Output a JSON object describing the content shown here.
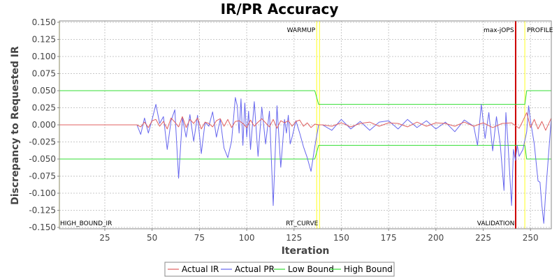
{
  "chart_data": {
    "type": "line",
    "title": "IR/PR Accuracy",
    "xlabel": "Iteration",
    "ylabel": "Discrepancy to Requested IR",
    "xlim": [
      1,
      261
    ],
    "ylim": [
      -0.152,
      0.152
    ],
    "x_ticks": [
      25,
      50,
      75,
      100,
      125,
      150,
      175,
      200,
      225,
      250
    ],
    "y_ticks": [
      0.15,
      0.125,
      0.1,
      0.075,
      0.05,
      0.025,
      0.0,
      -0.025,
      -0.05,
      -0.075,
      -0.1,
      -0.125,
      -0.15
    ],
    "grid": true,
    "legend_position": "bottom",
    "colors": {
      "actual_ir": "#e06060",
      "actual_pr": "#6666ee",
      "low_bound": "#33dd33",
      "high_bound": "#33dd33",
      "phase_marker": "#ffff44",
      "max_jops_marker": "#cc0000"
    },
    "phase_markers": [
      {
        "x": 1,
        "label": "HIGH_BOUND_IR",
        "label_pos": "bottom",
        "color": "#ffff44"
      },
      {
        "x": 137,
        "label": "WARMUP",
        "label_pos": "top",
        "color": "#ffff44"
      },
      {
        "x": 138.5,
        "label": "RT_CURVE",
        "label_pos": "bottom",
        "color": "#ffff44"
      },
      {
        "x": 242,
        "label": "max-jOPS",
        "label_pos": "top",
        "color": "#cc0000"
      },
      {
        "x": 242.3,
        "label": "VALIDATION",
        "label_pos": "bottom",
        "color": "#cc0000"
      },
      {
        "x": 247,
        "label": "PROFILE",
        "label_pos": "top",
        "color": "#ffff44"
      }
    ],
    "series": [
      {
        "name": "Actual IR",
        "x": [
          1,
          42,
          44,
          46,
          48,
          50,
          52,
          54,
          56,
          58,
          60,
          62,
          64,
          66,
          68,
          70,
          72,
          74,
          76,
          78,
          80,
          82,
          84,
          86,
          88,
          90,
          92,
          94,
          96,
          98,
          100,
          102,
          104,
          106,
          108,
          110,
          112,
          114,
          116,
          118,
          120,
          122,
          124,
          126,
          128,
          130,
          132,
          134,
          136,
          138,
          140,
          145,
          150,
          155,
          160,
          165,
          170,
          175,
          180,
          185,
          190,
          195,
          200,
          205,
          210,
          215,
          220,
          225,
          230,
          235,
          240,
          244,
          246,
          248,
          250,
          252,
          254,
          256,
          258,
          261
        ],
        "y": [
          0.0,
          0.0,
          -0.003,
          0.004,
          -0.004,
          0.006,
          0.008,
          -0.002,
          0.005,
          -0.006,
          0.01,
          0.004,
          -0.003,
          0.012,
          -0.004,
          0.008,
          0.002,
          0.01,
          -0.006,
          0.004,
          0.002,
          -0.003,
          0.006,
          0.009,
          -0.002,
          0.008,
          -0.004,
          0.005,
          0.006,
          0.002,
          -0.004,
          0.007,
          -0.002,
          0.004,
          0.009,
          0.003,
          -0.003,
          0.008,
          -0.005,
          0.006,
          0.003,
          0.006,
          -0.002,
          0.005,
          0.007,
          -0.002,
          0.003,
          -0.004,
          0.001,
          0.0,
          0.0,
          -0.002,
          0.003,
          -0.003,
          0.002,
          0.004,
          -0.002,
          0.003,
          0.002,
          -0.003,
          0.004,
          -0.002,
          0.003,
          0.002,
          -0.002,
          0.004,
          -0.002,
          0.003,
          -0.004,
          0.002,
          0.003,
          -0.005,
          0.006,
          0.018,
          -0.004,
          0.008,
          -0.006,
          0.005,
          -0.008,
          0.01
        ]
      },
      {
        "name": "Actual PR",
        "x": [
          1,
          42,
          44,
          46,
          48,
          50,
          52,
          54,
          56,
          58,
          60,
          62,
          64,
          66,
          68,
          70,
          72,
          74,
          76,
          78,
          80,
          82,
          84,
          86,
          88,
          90,
          92,
          94,
          95,
          96,
          97,
          98,
          99,
          100,
          101,
          102,
          104,
          106,
          108,
          110,
          112,
          114,
          116,
          118,
          120,
          121,
          122,
          123,
          124,
          126,
          128,
          130,
          132,
          134,
          136,
          138,
          140,
          145,
          150,
          155,
          160,
          165,
          170,
          175,
          180,
          185,
          190,
          195,
          200,
          205,
          210,
          215,
          220,
          222,
          224,
          226,
          228,
          230,
          232,
          234,
          236,
          237,
          238,
          240,
          241,
          242,
          243,
          244,
          246,
          248,
          249,
          250,
          252,
          254,
          255,
          256,
          257,
          258,
          261
        ],
        "y": [
          0.0,
          0.0,
          -0.014,
          0.01,
          -0.012,
          0.008,
          0.03,
          0.002,
          0.012,
          -0.036,
          0.006,
          0.022,
          -0.078,
          0.01,
          -0.018,
          0.015,
          -0.024,
          0.014,
          -0.042,
          0.004,
          -0.002,
          0.019,
          -0.018,
          0.008,
          -0.034,
          -0.048,
          -0.024,
          0.04,
          0.028,
          -0.012,
          0.038,
          -0.03,
          0.032,
          -0.018,
          0.02,
          -0.036,
          0.034,
          -0.046,
          0.026,
          -0.028,
          0.02,
          -0.118,
          0.028,
          -0.062,
          0.008,
          -0.012,
          0.014,
          -0.028,
          -0.018,
          0.006,
          -0.012,
          -0.032,
          -0.048,
          -0.068,
          -0.032,
          0.0,
          0.0,
          -0.008,
          0.008,
          -0.006,
          0.005,
          -0.008,
          0.004,
          0.006,
          -0.006,
          0.008,
          -0.004,
          0.006,
          -0.006,
          0.004,
          -0.01,
          0.007,
          -0.002,
          -0.03,
          0.03,
          -0.02,
          0.018,
          -0.038,
          0.012,
          -0.028,
          -0.096,
          0.018,
          -0.022,
          -0.118,
          -0.036,
          -0.052,
          -0.03,
          -0.046,
          -0.036,
          -0.01,
          0.028,
          0.006,
          -0.028,
          -0.082,
          -0.084,
          -0.118,
          -0.144,
          -0.1,
          0.01
        ]
      },
      {
        "name": "Low Bound",
        "x": [
          1,
          136,
          138,
          241,
          242,
          247,
          248,
          261
        ],
        "y": [
          -0.05,
          -0.05,
          -0.03,
          -0.03,
          -0.03,
          -0.03,
          -0.05,
          -0.05
        ]
      },
      {
        "name": "High Bound",
        "x": [
          1,
          136,
          138,
          241,
          242,
          247,
          248,
          261
        ],
        "y": [
          0.05,
          0.05,
          0.03,
          0.03,
          0.03,
          0.03,
          0.05,
          0.05
        ]
      }
    ]
  }
}
